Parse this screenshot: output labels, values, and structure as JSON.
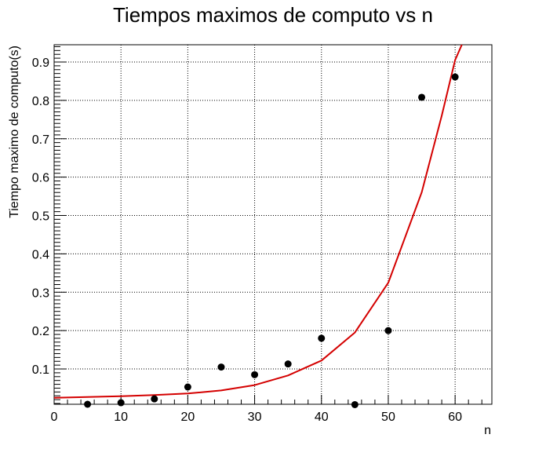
{
  "chart_data": {
    "type": "scatter",
    "title": "Tiempos maximos de computo vs n",
    "xlabel": "n",
    "ylabel": "Tiempo maximo de computo(s)",
    "xlim": [
      0,
      65.5
    ],
    "ylim": [
      0.008,
      0.945
    ],
    "x_ticks": [
      0,
      10,
      20,
      30,
      40,
      50,
      60
    ],
    "y_ticks": [
      0.1,
      0.2,
      0.3,
      0.4,
      0.5,
      0.6,
      0.7,
      0.8,
      0.9
    ],
    "grid": true,
    "series": [
      {
        "kind": "points",
        "color": "#000000",
        "x": [
          5,
          10,
          15,
          20,
          25,
          30,
          35,
          40,
          45,
          50,
          55,
          60
        ],
        "y": [
          0.008,
          0.012,
          0.022,
          0.053,
          0.105,
          0.085,
          0.113,
          0.18,
          0.007,
          0.2,
          0.808,
          0.861
        ]
      },
      {
        "kind": "fit-curve",
        "color": "#d40000",
        "x": [
          0,
          5,
          10,
          15,
          20,
          25,
          30,
          35,
          40,
          45,
          50,
          55,
          58,
          60,
          61
        ],
        "y": [
          0.025,
          0.027,
          0.029,
          0.032,
          0.036,
          0.044,
          0.058,
          0.083,
          0.122,
          0.195,
          0.325,
          0.56,
          0.76,
          0.905,
          0.945
        ]
      }
    ]
  }
}
